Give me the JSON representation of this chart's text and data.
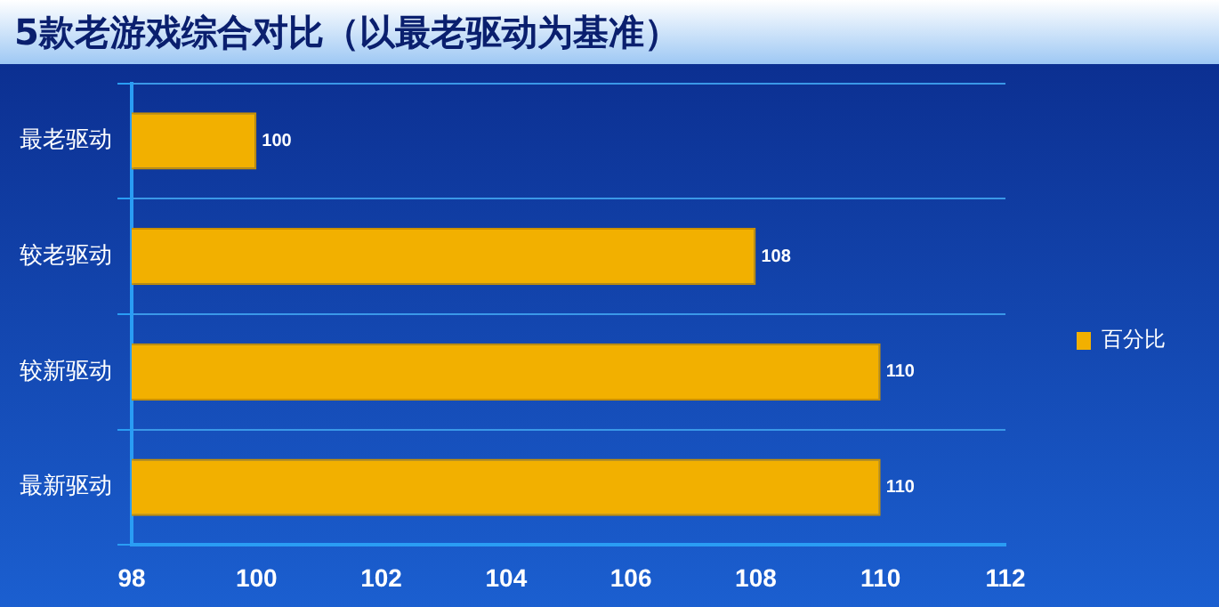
{
  "chart_data": {
    "type": "bar",
    "orientation": "horizontal",
    "title": "5款老游戏综合对比（以最老驱动为基准）",
    "categories": [
      "最老驱动",
      "较老驱动",
      "较新驱动",
      "最新驱动"
    ],
    "series": [
      {
        "name": "百分比",
        "color": "#f2b000",
        "values": [
          100,
          108,
          110,
          110
        ]
      }
    ],
    "xlim": [
      98,
      112
    ],
    "xticks": [
      98,
      100,
      102,
      104,
      106,
      108,
      110,
      112
    ],
    "grid": "y",
    "legend": "right",
    "data_labels": true
  }
}
